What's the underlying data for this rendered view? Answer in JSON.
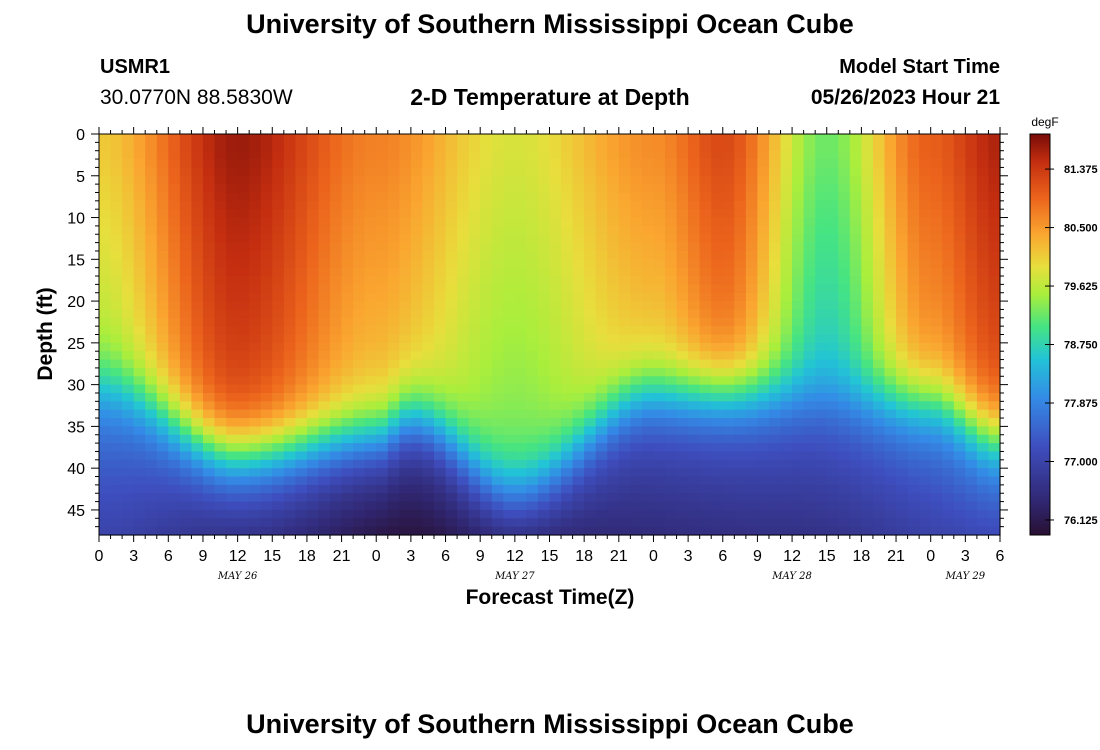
{
  "header": {
    "title": "University of Southern Mississippi Ocean Cube",
    "station_id": "USMR1",
    "station_coords": "30.0770N  88.5830W",
    "chart_title": "2-D Temperature at Depth",
    "model_label": "Model Start Time",
    "model_value": "05/26/2023 Hour 21"
  },
  "footer": {
    "title": "University of Southern Mississippi Ocean Cube"
  },
  "chart_data": {
    "type": "heatmap",
    "title": "2-D Temperature at Depth",
    "xlabel": "Forecast Time(Z)",
    "ylabel": "Depth (ft)",
    "x_range_hours": [
      0,
      78
    ],
    "y_range_ft": [
      0,
      48
    ],
    "x_ticks": [
      "0",
      "3",
      "6",
      "9",
      "12",
      "15",
      "18",
      "21",
      "0",
      "3",
      "6",
      "9",
      "12",
      "15",
      "18",
      "21",
      "0",
      "3",
      "6",
      "9",
      "12",
      "15",
      "18",
      "21",
      "0",
      "3",
      "6"
    ],
    "y_ticks": [
      "0",
      "5",
      "10",
      "15",
      "20",
      "25",
      "30",
      "35",
      "40",
      "45"
    ],
    "date_labels": [
      {
        "label": "MAY 26",
        "hour": 12
      },
      {
        "label": "MAY 27",
        "hour": 36
      },
      {
        "label": "MAY 28",
        "hour": 60
      },
      {
        "label": "MAY 29",
        "hour": 75
      }
    ],
    "colorbar": {
      "unit": "degF",
      "min": 75.9,
      "max": 81.9,
      "ticks": [
        "81.375",
        "80.500",
        "79.625",
        "78.750",
        "77.875",
        "77.000",
        "76.125"
      ]
    },
    "surface_temps": [
      {
        "hour": 0,
        "temp": 80.1
      },
      {
        "hour": 12,
        "temp": 81.7
      },
      {
        "hour": 24,
        "temp": 80.7
      },
      {
        "hour": 36,
        "temp": 79.8
      },
      {
        "hour": 48,
        "temp": 80.6
      },
      {
        "hour": 54,
        "temp": 81.2
      },
      {
        "hour": 63,
        "temp": 79.2
      },
      {
        "hour": 72,
        "temp": 81.0
      },
      {
        "hour": 78,
        "temp": 81.6
      }
    ],
    "thermocline_depth_ft": [
      {
        "hour": 0,
        "depth": 30
      },
      {
        "hour": 12,
        "depth": 38
      },
      {
        "hour": 24,
        "depth": 36
      },
      {
        "hour": 27,
        "depth": 34
      },
      {
        "hour": 36,
        "depth": 42
      },
      {
        "hour": 48,
        "depth": 31
      },
      {
        "hour": 60,
        "depth": 31
      },
      {
        "hour": 72,
        "depth": 32
      },
      {
        "hour": 78,
        "depth": 36
      }
    ],
    "bottom_temps": [
      {
        "hour": 0,
        "temp": 77.0
      },
      {
        "hour": 12,
        "temp": 76.6
      },
      {
        "hour": 27,
        "temp": 76.0
      },
      {
        "hour": 36,
        "temp": 76.4
      },
      {
        "hour": 60,
        "temp": 76.6
      },
      {
        "hour": 78,
        "temp": 77.1
      }
    ]
  }
}
